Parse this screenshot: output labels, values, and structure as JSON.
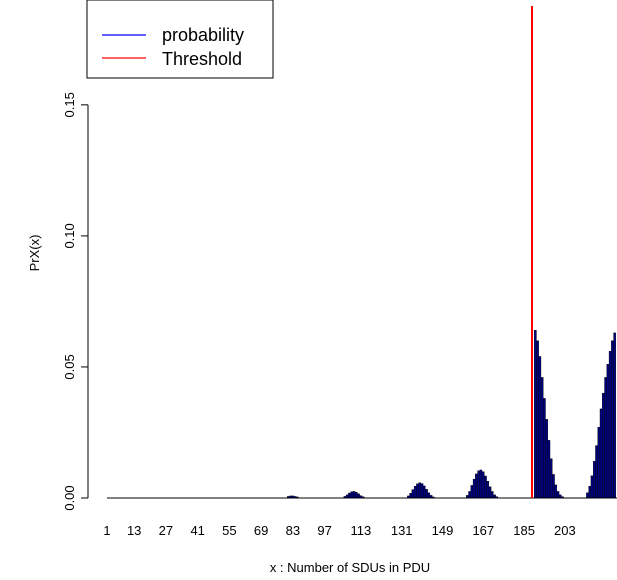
{
  "chart_data": {
    "type": "bar",
    "title": "",
    "xlabel": "x : Number of SDUs in PDU",
    "ylabel": "PrX(x)",
    "x_range": [
      1,
      226
    ],
    "ylim": [
      0,
      0.19
    ],
    "y_ticks": [
      0.0,
      0.05,
      0.1,
      0.15
    ],
    "y_tick_labels": [
      "0.00",
      "0.05",
      "0.10",
      "0.15"
    ],
    "x_tick_labels": [
      "1",
      "13",
      "27",
      "41",
      "55",
      "69",
      "83",
      "97",
      "113",
      "131",
      "149",
      "167",
      "185",
      "203"
    ],
    "x_tick_label_positions": [
      1,
      13,
      27,
      41,
      55,
      69,
      83,
      97,
      113,
      131,
      149,
      167,
      185,
      203
    ],
    "grid": false,
    "legend_position": "top-left",
    "legend": [
      {
        "label": "probability",
        "color": "#0000ff"
      },
      {
        "label": "Threshold",
        "color": "#ff0000"
      }
    ],
    "threshold_x": 189,
    "bar_fill": "#000080",
    "bar_edge": "#000000",
    "series": [
      {
        "name": "probability",
        "points": [
          {
            "x": 81,
            "y": 0.0006
          },
          {
            "x": 82,
            "y": 0.0008
          },
          {
            "x": 83,
            "y": 0.0008
          },
          {
            "x": 84,
            "y": 0.0006
          },
          {
            "x": 85,
            "y": 0.0004
          },
          {
            "x": 106,
            "y": 0.0006
          },
          {
            "x": 107,
            "y": 0.0012
          },
          {
            "x": 108,
            "y": 0.0019
          },
          {
            "x": 109,
            "y": 0.0024
          },
          {
            "x": 110,
            "y": 0.0025
          },
          {
            "x": 111,
            "y": 0.0022
          },
          {
            "x": 112,
            "y": 0.0016
          },
          {
            "x": 113,
            "y": 0.0009
          },
          {
            "x": 114,
            "y": 0.0005
          },
          {
            "x": 134,
            "y": 0.0008
          },
          {
            "x": 135,
            "y": 0.0018
          },
          {
            "x": 136,
            "y": 0.0032
          },
          {
            "x": 137,
            "y": 0.0045
          },
          {
            "x": 138,
            "y": 0.0054
          },
          {
            "x": 139,
            "y": 0.0058
          },
          {
            "x": 140,
            "y": 0.0055
          },
          {
            "x": 141,
            "y": 0.0046
          },
          {
            "x": 142,
            "y": 0.0033
          },
          {
            "x": 143,
            "y": 0.002
          },
          {
            "x": 144,
            "y": 0.001
          },
          {
            "x": 145,
            "y": 0.0004
          },
          {
            "x": 160,
            "y": 0.001
          },
          {
            "x": 161,
            "y": 0.0025
          },
          {
            "x": 162,
            "y": 0.0048
          },
          {
            "x": 163,
            "y": 0.0072
          },
          {
            "x": 164,
            "y": 0.0092
          },
          {
            "x": 165,
            "y": 0.0104
          },
          {
            "x": 166,
            "y": 0.0107
          },
          {
            "x": 167,
            "y": 0.01
          },
          {
            "x": 168,
            "y": 0.0084
          },
          {
            "x": 169,
            "y": 0.0064
          },
          {
            "x": 170,
            "y": 0.0043
          },
          {
            "x": 171,
            "y": 0.0025
          },
          {
            "x": 172,
            "y": 0.0012
          },
          {
            "x": 173,
            "y": 0.0005
          },
          {
            "x": 190,
            "y": 0.064
          },
          {
            "x": 191,
            "y": 0.06
          },
          {
            "x": 192,
            "y": 0.054
          },
          {
            "x": 193,
            "y": 0.046
          },
          {
            "x": 194,
            "y": 0.038
          },
          {
            "x": 195,
            "y": 0.03
          },
          {
            "x": 196,
            "y": 0.022
          },
          {
            "x": 197,
            "y": 0.015
          },
          {
            "x": 198,
            "y": 0.009
          },
          {
            "x": 199,
            "y": 0.005
          },
          {
            "x": 200,
            "y": 0.0025
          },
          {
            "x": 201,
            "y": 0.0012
          },
          {
            "x": 202,
            "y": 0.0005
          },
          {
            "x": 213,
            "y": 0.002
          },
          {
            "x": 214,
            "y": 0.0045
          },
          {
            "x": 215,
            "y": 0.0085
          },
          {
            "x": 216,
            "y": 0.014
          },
          {
            "x": 217,
            "y": 0.02
          },
          {
            "x": 218,
            "y": 0.027
          },
          {
            "x": 219,
            "y": 0.034
          },
          {
            "x": 220,
            "y": 0.04
          },
          {
            "x": 221,
            "y": 0.046
          },
          {
            "x": 222,
            "y": 0.051
          },
          {
            "x": 223,
            "y": 0.056
          },
          {
            "x": 224,
            "y": 0.06
          },
          {
            "x": 225,
            "y": 0.063
          }
        ]
      }
    ]
  }
}
